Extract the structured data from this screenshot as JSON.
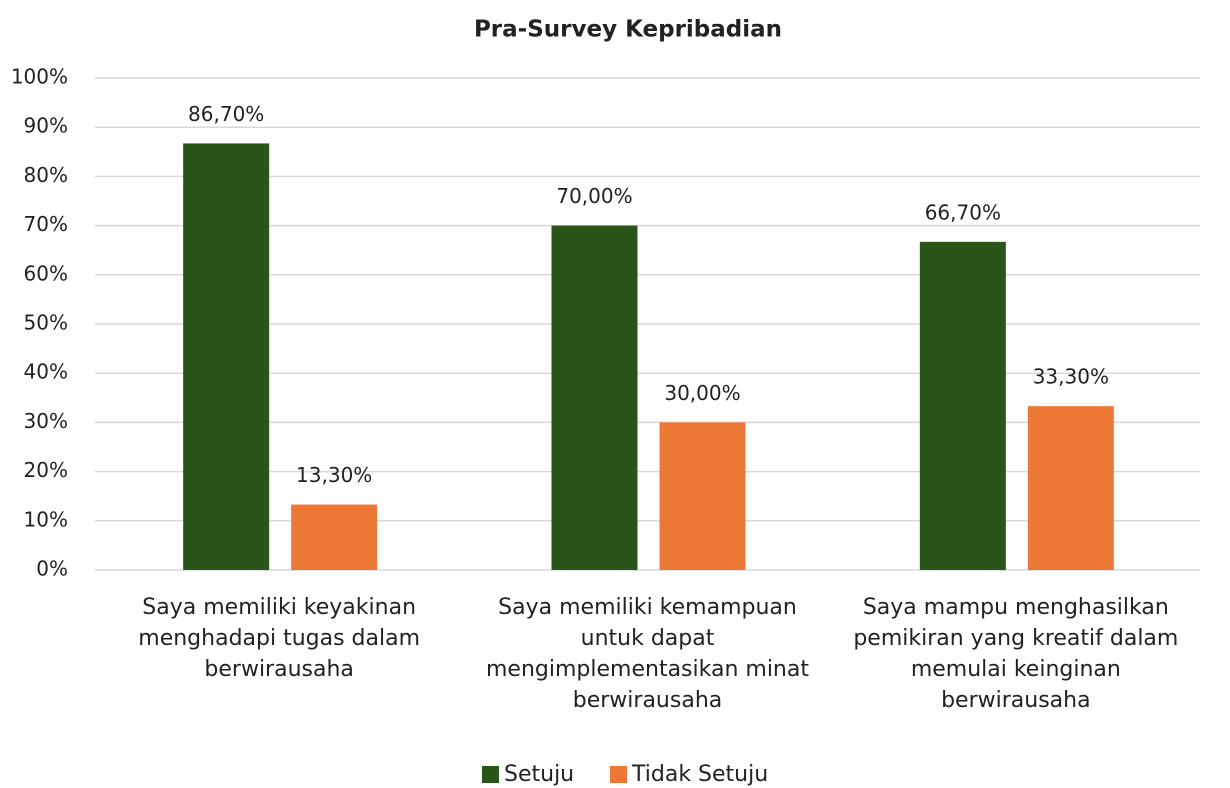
{
  "chart_data": {
    "type": "bar",
    "title": "Pra-Survey Kepribadian",
    "categories": [
      "Saya memiliki keyakinan menghadapi tugas dalam berwirausaha",
      "Saya memiliki kemampuan untuk dapat mengimplementasikan minat berwirausaha",
      "Saya mampu menghasilkan pemikiran yang kreatif dalam memulai keinginan berwirausaha"
    ],
    "series": [
      {
        "name": "Setuju",
        "color": "#2a5519",
        "values": [
          86.7,
          70.0,
          66.7
        ],
        "value_labels": [
          "86,70%",
          "70,00%",
          "66,70%"
        ]
      },
      {
        "name": "Tidak Setuju",
        "color": "#ed7734",
        "values": [
          13.3,
          30.0,
          33.3
        ],
        "value_labels": [
          "13,30%",
          "30,00%",
          "33,30%"
        ]
      }
    ],
    "ylim": [
      0,
      100
    ],
    "yticks": [
      {
        "value": 0,
        "label": "0%"
      },
      {
        "value": 10,
        "label": "10%"
      },
      {
        "value": 20,
        "label": "20%"
      },
      {
        "value": 30,
        "label": "30%"
      },
      {
        "value": 40,
        "label": "40%"
      },
      {
        "value": 50,
        "label": "50%"
      },
      {
        "value": 60,
        "label": "60%"
      },
      {
        "value": 70,
        "label": "70%"
      },
      {
        "value": 80,
        "label": "80%"
      },
      {
        "value": 90,
        "label": "90%"
      },
      {
        "value": 100,
        "label": "100%"
      }
    ],
    "grid": true,
    "legend": "bottom"
  }
}
